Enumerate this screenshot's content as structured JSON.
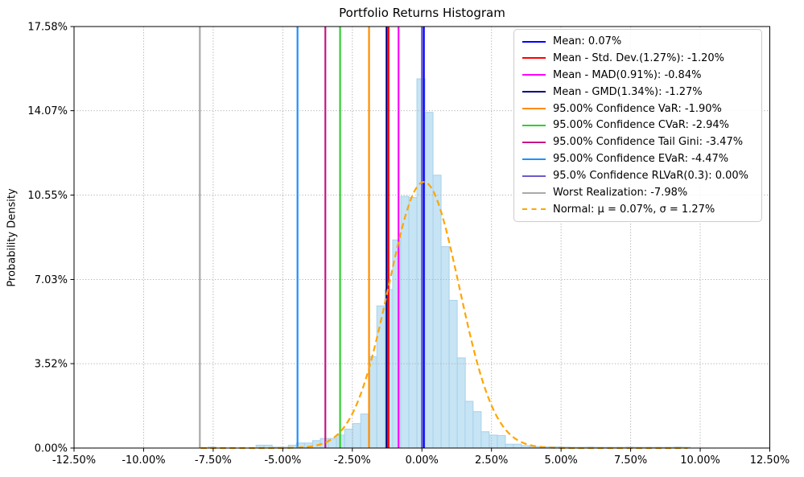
{
  "figure": {
    "background": "#ffffff"
  },
  "chart_data": {
    "type": "histogram",
    "title": "Portfolio Returns Histogram",
    "xlabel": "",
    "ylabel": "Probability Density",
    "xlim": [
      -12.5,
      12.5
    ],
    "ylim": [
      0,
      17.58
    ],
    "grid": "dotted",
    "grid_color": "#b0b0b0",
    "legend_position": "upper right",
    "x_ticks": {
      "values": [
        -12.5,
        -10,
        -7.5,
        -5,
        -2.5,
        0,
        2.5,
        5,
        7.5,
        10,
        12.5
      ],
      "labels": [
        "-12.50%",
        "-10.00%",
        "-7.50%",
        "-5.00%",
        "-2.50%",
        "0.00%",
        "2.50%",
        "5.00%",
        "7.50%",
        "10.00%",
        "12.50%"
      ]
    },
    "y_ticks": {
      "values": [
        0,
        3.52,
        7.03,
        10.55,
        14.07,
        17.58
      ],
      "labels": [
        "0.00%",
        "3.52%",
        "7.03%",
        "10.55%",
        "14.07%",
        "17.58%"
      ]
    },
    "histogram": {
      "fill_color": "#c6e4f4",
      "edge_color": "#a9d1ea",
      "bin_width": 0.289,
      "bars": [
        {
          "x": -7.69,
          "h": 0.04
        },
        {
          "x": -5.96,
          "h": 0.12
        },
        {
          "x": -5.67,
          "h": 0.12
        },
        {
          "x": -5.38,
          "h": 0.04
        },
        {
          "x": -5.09,
          "h": 0.04
        },
        {
          "x": -4.8,
          "h": 0.12
        },
        {
          "x": -4.51,
          "h": 0.21
        },
        {
          "x": -4.22,
          "h": 0.21
        },
        {
          "x": -3.93,
          "h": 0.31
        },
        {
          "x": -3.65,
          "h": 0.4
        },
        {
          "x": -3.36,
          "h": 0.4
        },
        {
          "x": -3.07,
          "h": 0.54
        },
        {
          "x": -2.78,
          "h": 0.79
        },
        {
          "x": -2.49,
          "h": 1.02
        },
        {
          "x": -2.2,
          "h": 1.42
        },
        {
          "x": -1.91,
          "h": 3.81
        },
        {
          "x": -1.62,
          "h": 5.93
        },
        {
          "x": -1.33,
          "h": 6.61
        },
        {
          "x": -1.05,
          "h": 8.68
        },
        {
          "x": -0.76,
          "h": 10.5
        },
        {
          "x": -0.47,
          "h": 10.45
        },
        {
          "x": -0.18,
          "h": 15.4
        },
        {
          "x": 0.11,
          "h": 14.0
        },
        {
          "x": 0.4,
          "h": 11.38
        },
        {
          "x": 0.69,
          "h": 8.4
        },
        {
          "x": 0.98,
          "h": 6.16
        },
        {
          "x": 1.27,
          "h": 3.76
        },
        {
          "x": 1.55,
          "h": 1.95
        },
        {
          "x": 1.84,
          "h": 1.52
        },
        {
          "x": 2.13,
          "h": 0.68
        },
        {
          "x": 2.42,
          "h": 0.54
        },
        {
          "x": 2.71,
          "h": 0.52
        },
        {
          "x": 3.0,
          "h": 0.16
        },
        {
          "x": 3.29,
          "h": 0.16
        },
        {
          "x": 3.58,
          "h": 0.1
        },
        {
          "x": 3.87,
          "h": 0.06
        },
        {
          "x": 4.15,
          "h": 0.06
        },
        {
          "x": 4.44,
          "h": 0.05
        },
        {
          "x": 4.73,
          "h": 0.05
        },
        {
          "x": 5.02,
          "h": 0.04
        },
        {
          "x": 5.31,
          "h": 0.03
        },
        {
          "x": 5.6,
          "h": 0.03
        },
        {
          "x": 5.89,
          "h": 0.04
        },
        {
          "x": 6.18,
          "h": 0.03
        },
        {
          "x": 6.47,
          "h": 0.03
        },
        {
          "x": 6.75,
          "h": 0.03
        },
        {
          "x": 7.04,
          "h": 0.03
        },
        {
          "x": 7.33,
          "h": 0.04
        },
        {
          "x": 7.62,
          "h": 0.03
        },
        {
          "x": 7.91,
          "h": 0.03
        },
        {
          "x": 8.2,
          "h": 0.03
        },
        {
          "x": 8.49,
          "h": 0.03
        },
        {
          "x": 8.78,
          "h": 0.03
        },
        {
          "x": 9.07,
          "h": 0.04
        },
        {
          "x": 9.35,
          "h": 0.03
        }
      ]
    },
    "vlines": [
      {
        "name": "mean",
        "label": "Mean: 0.07%",
        "x": 0.07,
        "color": "#0000ff"
      },
      {
        "name": "mean-minus-std-dev",
        "label": "Mean - Std. Dev.(1.27%): -1.20%",
        "x": -1.2,
        "color": "#ff0000"
      },
      {
        "name": "mean-minus-mad",
        "label": "Mean - MAD(0.91%): -0.84%",
        "x": -0.84,
        "color": "#ff00ff"
      },
      {
        "name": "mean-minus-gmd",
        "label": "Mean - GMD(1.34%): -1.27%",
        "x": -1.27,
        "color": "#000080"
      },
      {
        "name": "var",
        "label": "95.00% Confidence VaR: -1.90%",
        "x": -1.9,
        "color": "#ff8c00"
      },
      {
        "name": "cvar",
        "label": "95.00% Confidence CVaR: -2.94%",
        "x": -2.94,
        "color": "#32cd32"
      },
      {
        "name": "tail-gini",
        "label": "95.00% Confidence Tail Gini: -3.47%",
        "x": -3.47,
        "color": "#c71585"
      },
      {
        "name": "evar",
        "label": "95.00% Confidence EVaR: -4.47%",
        "x": -4.47,
        "color": "#1e90ff"
      },
      {
        "name": "rlvar",
        "label": "95.0% Confidence RLVaR(0.3): 0.00%",
        "x": 0.0,
        "color": "#6a5acd"
      },
      {
        "name": "worst-realization",
        "label": "Worst Realization: -7.98%",
        "x": -7.98,
        "color": "#a9a9a9"
      }
    ],
    "normal_curve": {
      "name": "normal-fit",
      "label": "Normal: μ = 0.07%, σ = 1.27%",
      "mu": 0.07,
      "sigma": 1.27,
      "peak": 11.1,
      "x_range": [
        -7.95,
        9.55
      ],
      "color": "#ffa500",
      "style": "dashed"
    }
  }
}
